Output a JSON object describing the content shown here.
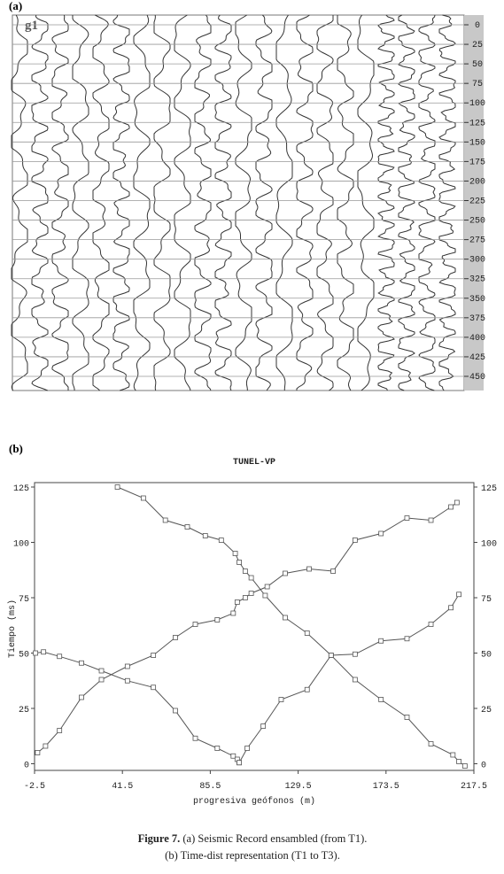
{
  "figure_a": {
    "label": "(a)",
    "trace_label": "g1",
    "time_ticks": [
      0,
      25,
      50,
      75,
      100,
      125,
      150,
      175,
      200,
      225,
      250,
      275,
      300,
      325,
      350,
      375,
      400,
      425,
      450
    ]
  },
  "figure_b": {
    "label": "(b)"
  },
  "chart_data": {
    "type": "line",
    "title": "TUNEL-VP",
    "x_label": "progresiva geófonos (m)",
    "y_label": "Tiempo (ms)",
    "xlim": [
      -2.5,
      217.5
    ],
    "xticks": [
      -2.5,
      41.5,
      85.5,
      129.5,
      173.5,
      217.5
    ],
    "ylim": [
      -3,
      127
    ],
    "yticks": [
      0,
      25,
      50,
      75,
      100,
      125
    ],
    "y2lim": [
      -3,
      127
    ],
    "y2ticks": [
      0,
      25,
      50,
      75,
      100,
      125
    ],
    "series": [
      {
        "color": "#555555",
        "x": [
          -1,
          3,
          10,
          21,
          31,
          44,
          57,
          68,
          78,
          89,
          97,
          99,
          103,
          106,
          114,
          123,
          135,
          147,
          158,
          171,
          184,
          196,
          206,
          209
        ],
        "values": [
          5,
          8,
          15,
          30,
          38,
          44,
          49,
          57,
          63,
          65,
          68,
          73,
          75,
          77,
          80,
          86,
          88,
          87,
          101,
          104,
          111,
          110,
          116,
          118
        ]
      },
      {
        "color": "#555555",
        "x": [
          39,
          52,
          63,
          74,
          83,
          91,
          98,
          100,
          103,
          106,
          113,
          123,
          134,
          146,
          158,
          171,
          184,
          196,
          207,
          210,
          213
        ],
        "values": [
          125,
          120,
          110,
          107,
          103,
          101,
          95,
          91,
          87,
          84,
          76,
          66,
          59,
          49,
          38,
          29,
          21,
          9,
          4,
          1,
          -1
        ]
      },
      {
        "color": "#555555",
        "x": [
          -2,
          2,
          10,
          21,
          31,
          44,
          57,
          68,
          78,
          89,
          97,
          99,
          100
        ],
        "values": [
          50,
          50.5,
          48.5,
          45.5,
          42,
          37.5,
          34.5,
          24,
          11.5,
          7,
          3.5,
          2,
          0.5
        ]
      },
      {
        "color": "#555555",
        "x": [
          100,
          104,
          112,
          121,
          134,
          146,
          158,
          171,
          184,
          196,
          206,
          210
        ],
        "values": [
          0.5,
          7,
          17,
          29,
          33.5,
          49,
          49.5,
          55.5,
          56.5,
          63,
          70.5,
          76.5
        ]
      }
    ]
  },
  "caption": {
    "label": "Figure 7.",
    "text": "(a) Seismic Record ensambled (from T1). (b) Time-dist representation (T1 to T3)."
  }
}
